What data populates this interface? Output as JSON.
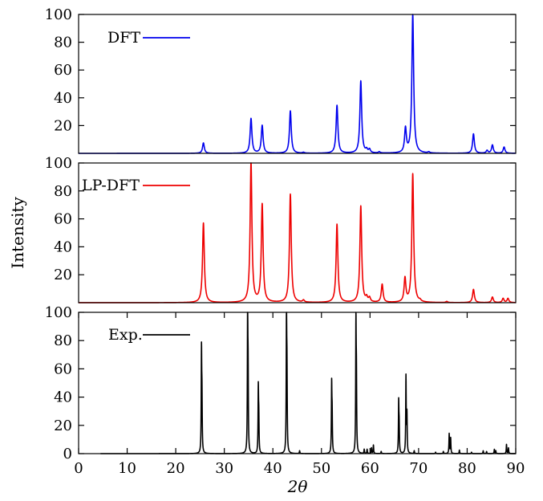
{
  "figure": {
    "ylabel": "Intensity",
    "xlabel": "2θ"
  },
  "chart_data": [
    {
      "type": "line",
      "panel": "top",
      "series": [
        {
          "name": "DFT",
          "color": "#0000ee"
        }
      ],
      "legend": "top-left",
      "xlim": [
        0,
        90
      ],
      "ylim": [
        0,
        100
      ],
      "yticks": [
        20,
        40,
        60,
        80,
        100
      ],
      "peak_width": 0.22,
      "peaks": [
        [
          25.7,
          7.5
        ],
        [
          35.5,
          25
        ],
        [
          37.8,
          20
        ],
        [
          43.6,
          30.5
        ],
        [
          46.3,
          0.6
        ],
        [
          53.2,
          34.5
        ],
        [
          58.1,
          52
        ],
        [
          59.3,
          2.2
        ],
        [
          59.9,
          2.5
        ],
        [
          61.9,
          0.9
        ],
        [
          67.3,
          17.5
        ],
        [
          68.8,
          100
        ],
        [
          72.1,
          0.8
        ],
        [
          81.3,
          14
        ],
        [
          84.1,
          2
        ],
        [
          85.2,
          6
        ],
        [
          87.6,
          4.5
        ]
      ]
    },
    {
      "type": "line",
      "panel": "middle",
      "series": [
        {
          "name": "LP-DFT",
          "color": "#ee0000"
        }
      ],
      "legend": "top-left",
      "xlim": [
        0,
        90
      ],
      "ylim": [
        0,
        100
      ],
      "yticks": [
        20,
        40,
        60,
        80,
        100
      ],
      "peak_width": 0.22,
      "peaks": [
        [
          25.7,
          57
        ],
        [
          35.5,
          100
        ],
        [
          37.8,
          70
        ],
        [
          43.6,
          77.5
        ],
        [
          46.3,
          1.5
        ],
        [
          53.2,
          56
        ],
        [
          58.1,
          69
        ],
        [
          59.3,
          3
        ],
        [
          59.9,
          3
        ],
        [
          62.5,
          13
        ],
        [
          67.2,
          17
        ],
        [
          68.8,
          92
        ],
        [
          70.3,
          1
        ],
        [
          75.8,
          0.8
        ],
        [
          81.3,
          9.5
        ],
        [
          85.2,
          4
        ],
        [
          87.4,
          3
        ],
        [
          88.4,
          3
        ]
      ]
    },
    {
      "type": "line",
      "panel": "bottom",
      "series": [
        {
          "name": "Exp.",
          "color": "#000000"
        }
      ],
      "legend": "top-left",
      "xlim": [
        0,
        90
      ],
      "ylim": [
        0,
        100
      ],
      "x_start": 4.5,
      "xticks": [
        0,
        10,
        20,
        30,
        40,
        50,
        60,
        70,
        80,
        90
      ],
      "yticks": [
        0,
        20,
        40,
        60,
        80,
        100
      ],
      "peak_width": 0.06,
      "peaks": [
        [
          25.3,
          70
        ],
        [
          25.4,
          34
        ],
        [
          34.8,
          100
        ],
        [
          34.9,
          48
        ],
        [
          37.0,
          45
        ],
        [
          37.1,
          22
        ],
        [
          42.8,
          98
        ],
        [
          42.9,
          49
        ],
        [
          45.5,
          2
        ],
        [
          52.1,
          47
        ],
        [
          52.2,
          24
        ],
        [
          57.1,
          91
        ],
        [
          57.2,
          45
        ],
        [
          58.8,
          3
        ],
        [
          59.4,
          3
        ],
        [
          60.3,
          4
        ],
        [
          60.7,
          6
        ],
        [
          62.3,
          1.5
        ],
        [
          65.9,
          35
        ],
        [
          66.0,
          17
        ],
        [
          67.4,
          54
        ],
        [
          67.6,
          27
        ],
        [
          69.1,
          2
        ],
        [
          73.5,
          1
        ],
        [
          75.1,
          1.5
        ],
        [
          76.3,
          14
        ],
        [
          76.6,
          11
        ],
        [
          78.4,
          2.5
        ],
        [
          80.9,
          1
        ],
        [
          83.3,
          2
        ],
        [
          84.0,
          1.5
        ],
        [
          85.6,
          3
        ],
        [
          85.9,
          2
        ],
        [
          88.1,
          6.5
        ],
        [
          88.5,
          4
        ]
      ]
    }
  ]
}
